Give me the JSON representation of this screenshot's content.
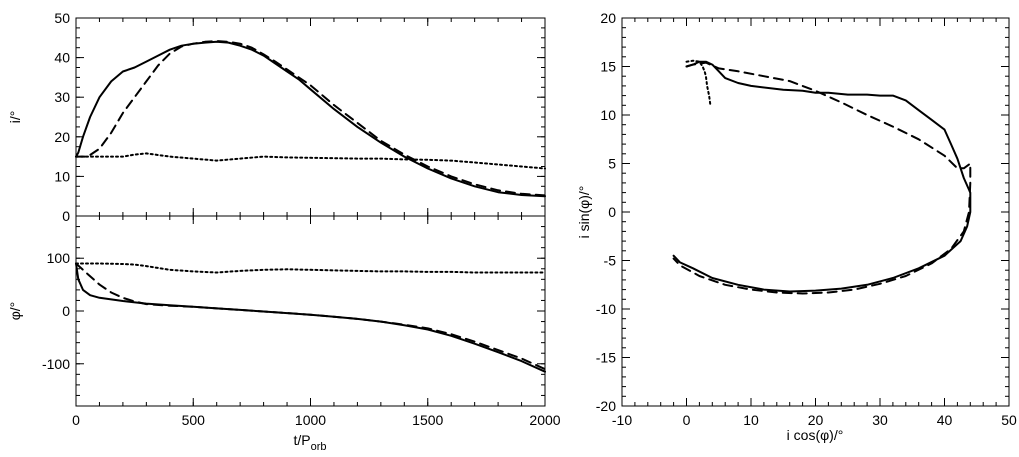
{
  "chart_data": [
    {
      "id": "inclination",
      "type": "line",
      "xlabel": "",
      "ylabel": "i/°",
      "xlim": [
        0,
        2000
      ],
      "ylim": [
        0,
        50
      ],
      "xticks": [
        0,
        500,
        1000,
        1500,
        2000
      ],
      "yticks": [
        0,
        10,
        20,
        30,
        40,
        50
      ],
      "ytick_labels": [
        "0",
        "10",
        "20",
        "30",
        "40",
        "50"
      ],
      "grid": false,
      "series": [
        {
          "style": "solid",
          "points": [
            [
              0,
              15
            ],
            [
              10,
              16
            ],
            [
              30,
              20
            ],
            [
              60,
              25
            ],
            [
              100,
              30
            ],
            [
              150,
              34
            ],
            [
              200,
              36.5
            ],
            [
              250,
              37.5
            ],
            [
              300,
              39
            ],
            [
              350,
              40.5
            ],
            [
              400,
              42
            ],
            [
              450,
              43
            ],
            [
              500,
              43.5
            ],
            [
              550,
              43.8
            ],
            [
              600,
              44
            ],
            [
              650,
              43.8
            ],
            [
              700,
              43
            ],
            [
              750,
              42
            ],
            [
              800,
              40.5
            ],
            [
              850,
              38.5
            ],
            [
              900,
              36.5
            ],
            [
              950,
              34.5
            ],
            [
              1000,
              32
            ],
            [
              1100,
              27
            ],
            [
              1200,
              22.5
            ],
            [
              1300,
              18.5
            ],
            [
              1400,
              15
            ],
            [
              1500,
              12
            ],
            [
              1600,
              9.5
            ],
            [
              1700,
              7.5
            ],
            [
              1800,
              6
            ],
            [
              1900,
              5.3
            ],
            [
              2000,
              5
            ]
          ]
        },
        {
          "style": "dashed",
          "points": [
            [
              0,
              15
            ],
            [
              50,
              15
            ],
            [
              100,
              17
            ],
            [
              150,
              21
            ],
            [
              200,
              26
            ],
            [
              250,
              30
            ],
            [
              300,
              34
            ],
            [
              350,
              38
            ],
            [
              400,
              41
            ],
            [
              450,
              42.8
            ],
            [
              500,
              43.5
            ],
            [
              550,
              44
            ],
            [
              600,
              44.2
            ],
            [
              650,
              44
            ],
            [
              700,
              43.5
            ],
            [
              750,
              42.5
            ],
            [
              800,
              40.8
            ],
            [
              850,
              39
            ],
            [
              900,
              37
            ],
            [
              950,
              35
            ],
            [
              1000,
              33
            ],
            [
              1100,
              28
            ],
            [
              1200,
              23.5
            ],
            [
              1300,
              19
            ],
            [
              1400,
              15.5
            ],
            [
              1500,
              12.5
            ],
            [
              1600,
              10
            ],
            [
              1700,
              8
            ],
            [
              1800,
              6.5
            ],
            [
              1900,
              5.6
            ],
            [
              2000,
              5.2
            ]
          ]
        },
        {
          "style": "dotted",
          "points": [
            [
              0,
              15
            ],
            [
              100,
              15
            ],
            [
              200,
              15
            ],
            [
              250,
              15.5
            ],
            [
              300,
              15.8
            ],
            [
              400,
              15
            ],
            [
              500,
              14.5
            ],
            [
              600,
              14
            ],
            [
              700,
              14.5
            ],
            [
              800,
              15
            ],
            [
              900,
              14.8
            ],
            [
              1000,
              14.7
            ],
            [
              1100,
              14.6
            ],
            [
              1200,
              14.5
            ],
            [
              1300,
              14.5
            ],
            [
              1400,
              14.3
            ],
            [
              1500,
              14.2
            ],
            [
              1600,
              14
            ],
            [
              1700,
              13.5
            ],
            [
              1800,
              13
            ],
            [
              1900,
              12.5
            ],
            [
              2000,
              12
            ]
          ]
        }
      ]
    },
    {
      "id": "phase",
      "type": "line",
      "xlabel": "t/P",
      "xlabel_sub": "orb",
      "ylabel": "φ/°",
      "xlim": [
        0,
        2000
      ],
      "ylim": [
        -180,
        180
      ],
      "xticks": [
        0,
        500,
        1000,
        1500,
        2000
      ],
      "xtick_labels": [
        "0",
        "500",
        "1000",
        "1500",
        "2000"
      ],
      "yticks": [
        -100,
        0,
        100
      ],
      "ytick_labels": [
        "-100",
        "0",
        "100"
      ],
      "grid": false,
      "series": [
        {
          "style": "solid",
          "points": [
            [
              0,
              90
            ],
            [
              10,
              60
            ],
            [
              30,
              40
            ],
            [
              60,
              30
            ],
            [
              100,
              25
            ],
            [
              200,
              19
            ],
            [
              300,
              14
            ],
            [
              400,
              11
            ],
            [
              500,
              8
            ],
            [
              600,
              5
            ],
            [
              700,
              2
            ],
            [
              800,
              -1
            ],
            [
              900,
              -4
            ],
            [
              1000,
              -7
            ],
            [
              1100,
              -11
            ],
            [
              1200,
              -15
            ],
            [
              1300,
              -20
            ],
            [
              1400,
              -27
            ],
            [
              1500,
              -35
            ],
            [
              1600,
              -47
            ],
            [
              1700,
              -62
            ],
            [
              1800,
              -78
            ],
            [
              1900,
              -95
            ],
            [
              2000,
              -115
            ]
          ]
        },
        {
          "style": "dashed",
          "points": [
            [
              0,
              90
            ],
            [
              50,
              70
            ],
            [
              100,
              50
            ],
            [
              150,
              35
            ],
            [
              200,
              25
            ],
            [
              250,
              18
            ],
            [
              300,
              13
            ],
            [
              400,
              10
            ],
            [
              500,
              8
            ],
            [
              600,
              5
            ],
            [
              700,
              2
            ],
            [
              800,
              -1
            ],
            [
              900,
              -4
            ],
            [
              1000,
              -7
            ],
            [
              1100,
              -11
            ],
            [
              1200,
              -15
            ],
            [
              1300,
              -20
            ],
            [
              1400,
              -26
            ],
            [
              1500,
              -33
            ],
            [
              1600,
              -44
            ],
            [
              1700,
              -58
            ],
            [
              1800,
              -74
            ],
            [
              1900,
              -90
            ],
            [
              2000,
              -110
            ]
          ]
        },
        {
          "style": "dotted",
          "points": [
            [
              0,
              90
            ],
            [
              100,
              90
            ],
            [
              200,
              89
            ],
            [
              250,
              88
            ],
            [
              300,
              85
            ],
            [
              400,
              78
            ],
            [
              500,
              75
            ],
            [
              600,
              73
            ],
            [
              700,
              76
            ],
            [
              800,
              78
            ],
            [
              900,
              79
            ],
            [
              1000,
              78
            ],
            [
              1100,
              77
            ],
            [
              1200,
              76
            ],
            [
              1300,
              75
            ],
            [
              1400,
              75
            ],
            [
              1500,
              74
            ],
            [
              1600,
              74
            ],
            [
              1700,
              73
            ],
            [
              1800,
              73
            ],
            [
              1900,
              73
            ],
            [
              2000,
              73
            ]
          ]
        }
      ]
    },
    {
      "id": "polar",
      "type": "line",
      "xlabel": "i cos(φ)/°",
      "ylabel": "i sin(φ)/°",
      "xlim": [
        -10,
        50
      ],
      "ylim": [
        -20,
        20
      ],
      "xticks": [
        -10,
        0,
        10,
        20,
        30,
        40,
        50
      ],
      "xtick_labels": [
        "-10",
        "0",
        "10",
        "20",
        "30",
        "40",
        "50"
      ],
      "yticks": [
        -20,
        -15,
        -10,
        -5,
        0,
        5,
        10,
        15,
        20
      ],
      "ytick_labels": [
        "-20",
        "-15",
        "-10",
        "-5",
        "0",
        "5",
        "10",
        "15",
        "20"
      ],
      "grid": false,
      "series": [
        {
          "style": "solid",
          "points": [
            [
              0,
              15
            ],
            [
              1,
              15.2
            ],
            [
              2,
              15.5
            ],
            [
              3,
              15.5
            ],
            [
              4,
              15.2
            ],
            [
              5,
              14.5
            ],
            [
              6,
              13.8
            ],
            [
              8,
              13.3
            ],
            [
              10,
              13
            ],
            [
              15,
              12.6
            ],
            [
              18,
              12.5
            ],
            [
              20,
              12.3
            ],
            [
              22,
              12.3
            ],
            [
              25,
              12.1
            ],
            [
              28,
              12.1
            ],
            [
              30,
              12
            ],
            [
              32,
              12
            ],
            [
              34,
              11.5
            ],
            [
              36,
              10.5
            ],
            [
              38,
              9.5
            ],
            [
              40,
              8.5
            ],
            [
              41,
              7
            ],
            [
              42,
              5.5
            ],
            [
              43,
              3.5
            ],
            [
              44,
              2
            ],
            [
              44,
              0
            ],
            [
              43.5,
              -1.5
            ],
            [
              42.5,
              -3
            ],
            [
              40,
              -4.5
            ],
            [
              36,
              -5.8
            ],
            [
              32,
              -6.8
            ],
            [
              28,
              -7.5
            ],
            [
              24,
              -7.9
            ],
            [
              20,
              -8.1
            ],
            [
              16,
              -8.2
            ],
            [
              12,
              -8
            ],
            [
              8,
              -7.5
            ],
            [
              4,
              -6.8
            ],
            [
              1,
              -5.8
            ],
            [
              -1,
              -5.2
            ],
            [
              -2,
              -4.5
            ]
          ]
        },
        {
          "style": "dashed",
          "points": [
            [
              0,
              15
            ],
            [
              1,
              15.2
            ],
            [
              3,
              15.4
            ],
            [
              5,
              14.8
            ],
            [
              8,
              14.5
            ],
            [
              12,
              14
            ],
            [
              16,
              13.5
            ],
            [
              20,
              12.5
            ],
            [
              24,
              11.3
            ],
            [
              28,
              10
            ],
            [
              32,
              8.8
            ],
            [
              36,
              7.5
            ],
            [
              40,
              5.8
            ],
            [
              42,
              4.5
            ],
            [
              43,
              4.5
            ],
            [
              44,
              5
            ],
            [
              44,
              3
            ],
            [
              43.8,
              0
            ],
            [
              43,
              -2
            ],
            [
              41,
              -3.8
            ],
            [
              38,
              -5.3
            ],
            [
              34,
              -6.6
            ],
            [
              30,
              -7.4
            ],
            [
              26,
              -8
            ],
            [
              22,
              -8.3
            ],
            [
              18,
              -8.4
            ],
            [
              14,
              -8.3
            ],
            [
              10,
              -8
            ],
            [
              6,
              -7.5
            ],
            [
              2,
              -6.6
            ],
            [
              -1,
              -5.5
            ],
            [
              -2,
              -4.8
            ]
          ]
        },
        {
          "style": "dotted",
          "points": [
            [
              0,
              15.5
            ],
            [
              1,
              15.6
            ],
            [
              2,
              15.5
            ],
            [
              2.5,
              15
            ],
            [
              2.8,
              14.5
            ],
            [
              3,
              14
            ],
            [
              3.2,
              13
            ],
            [
              3.5,
              12
            ],
            [
              3.7,
              11
            ]
          ]
        }
      ]
    }
  ]
}
